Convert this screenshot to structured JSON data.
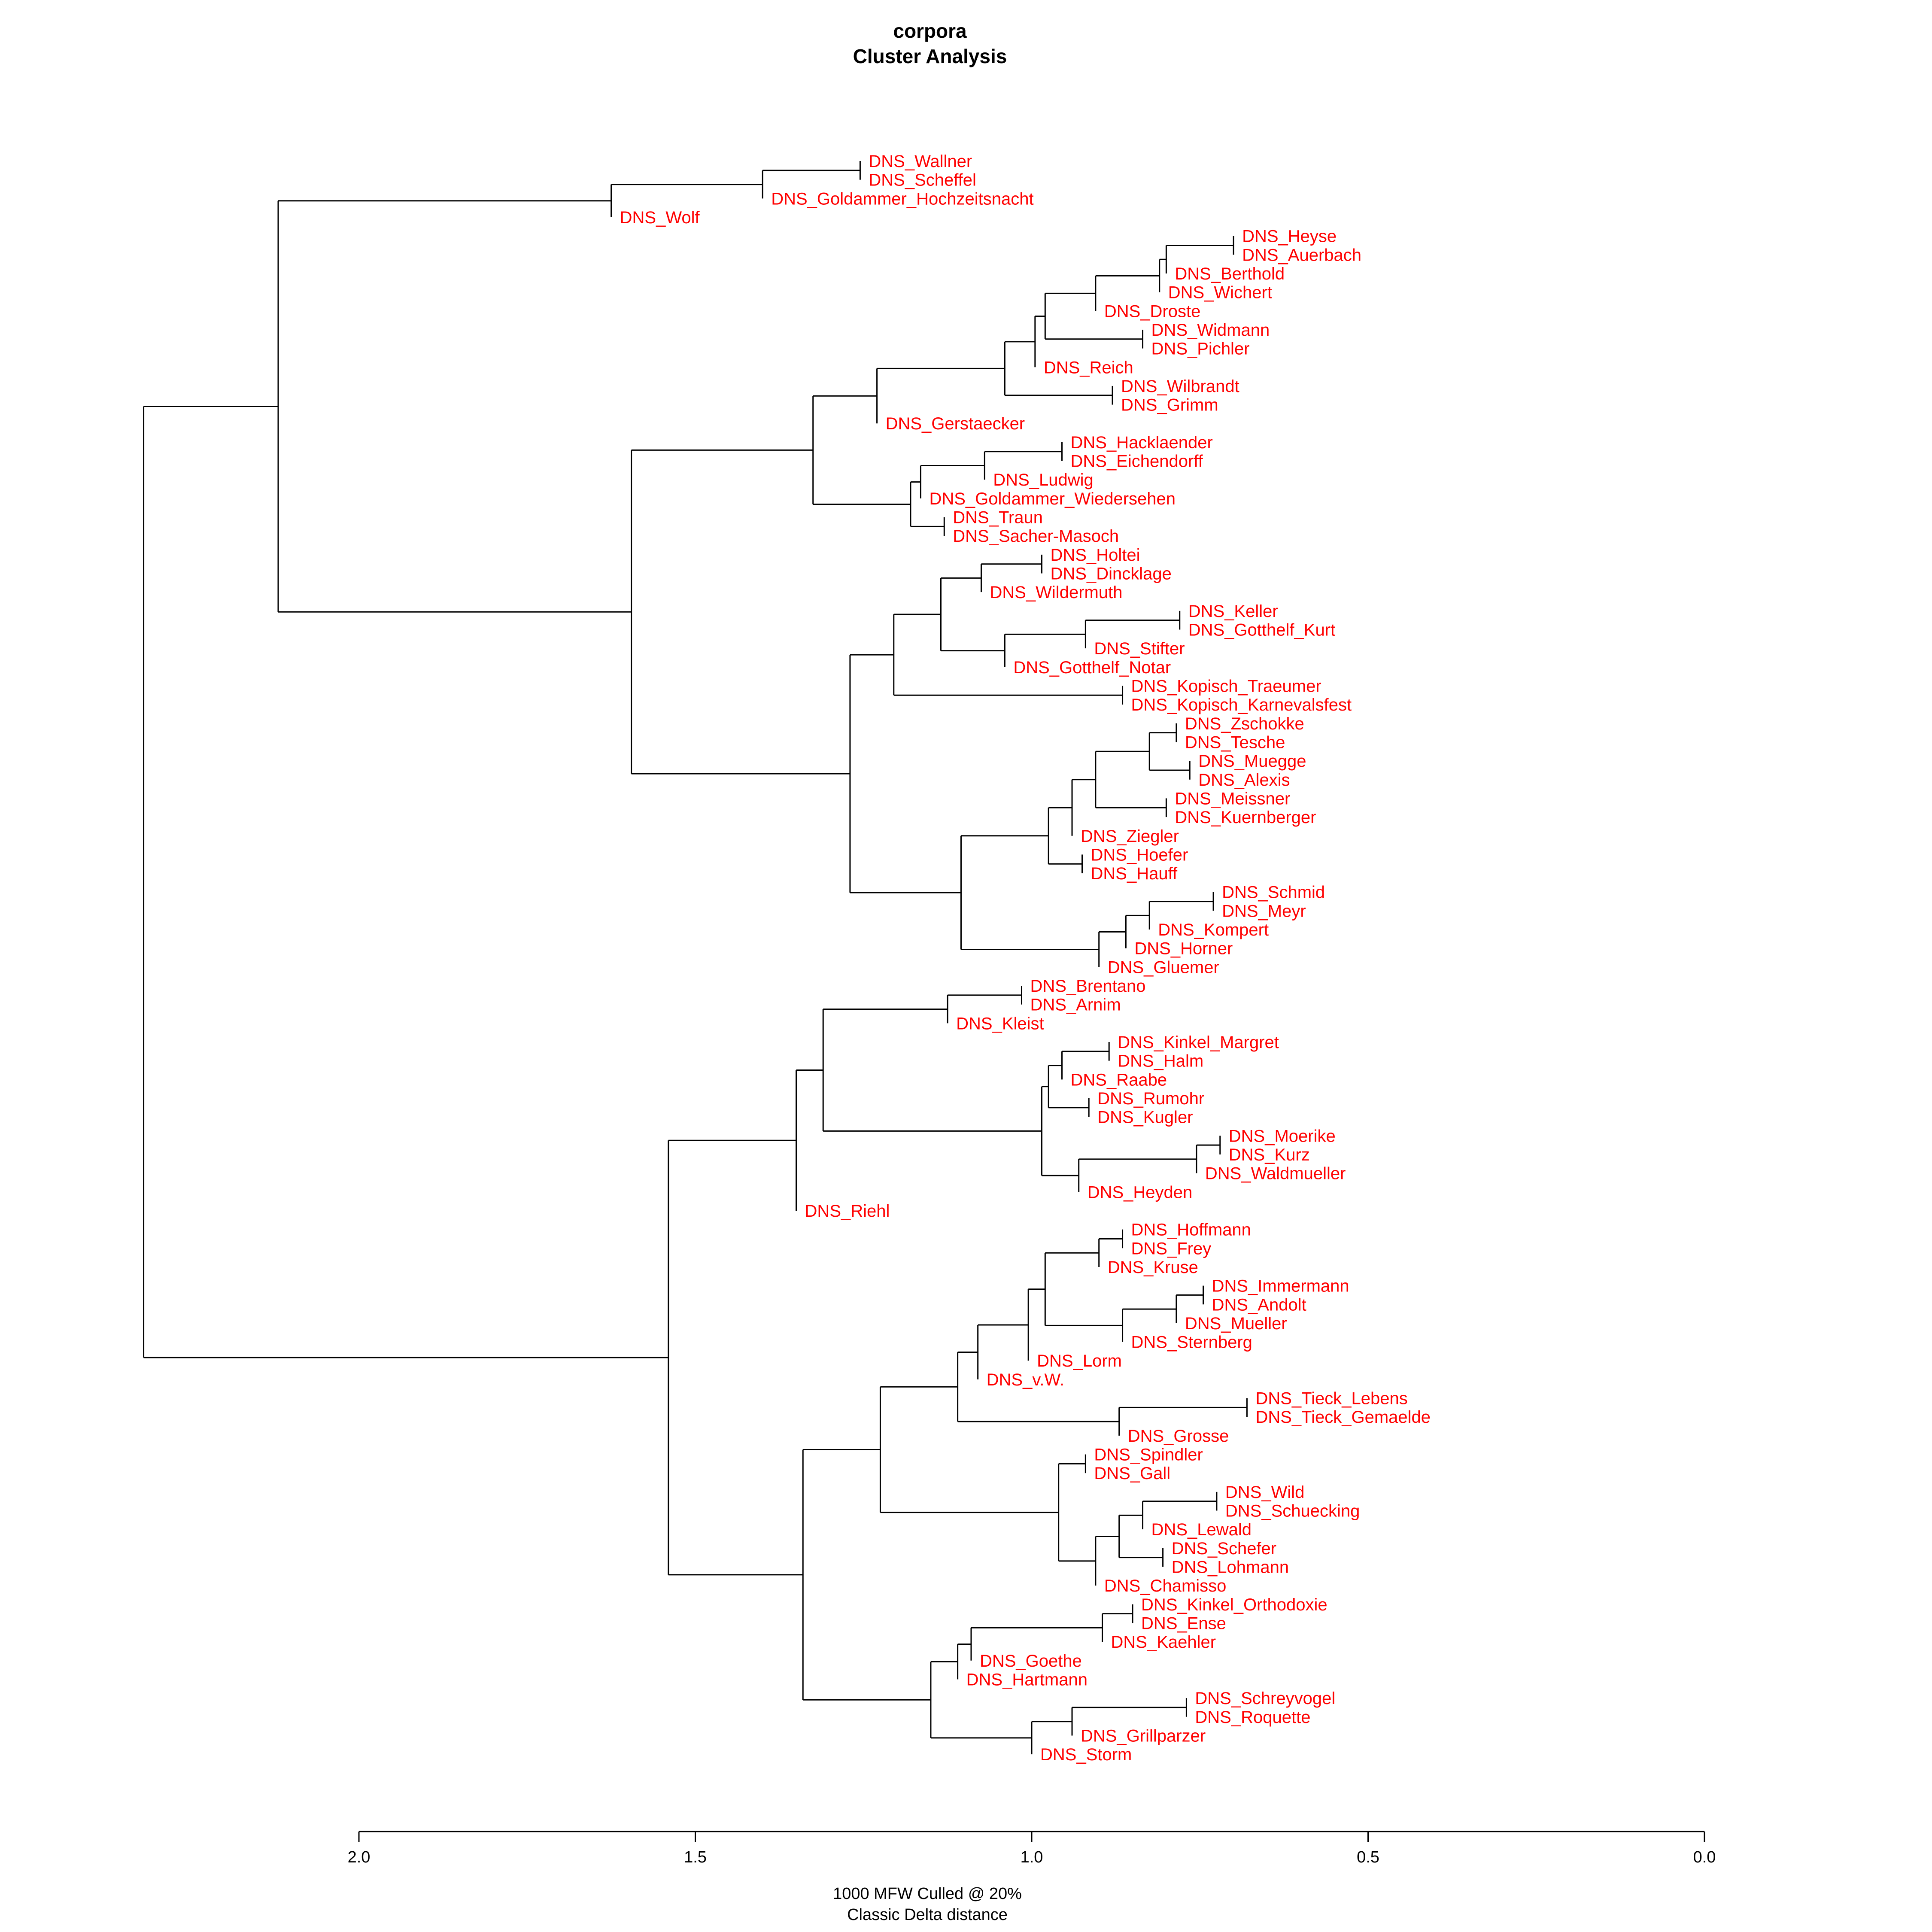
{
  "chart_data": {
    "type": "dendrogram",
    "title": "corpora",
    "subtitle": "Cluster Analysis",
    "xlabel_line1": "1000 MFW  Culled @ 20%",
    "xlabel_line2": "Classic Delta distance",
    "xlim": [
      2.0,
      0.0
    ],
    "ticks": [
      {
        "value": 2.0,
        "label": "2.0"
      },
      {
        "value": 1.5,
        "label": "1.5"
      },
      {
        "value": 1.0,
        "label": "1.0"
      },
      {
        "value": 0.5,
        "label": "0.5"
      },
      {
        "value": 0.0,
        "label": "0.0"
      }
    ],
    "leaves": [
      "DNS_Wallner",
      "DNS_Scheffel",
      "DNS_Goldammer_Hochzeitsnacht",
      "DNS_Wolf",
      "DNS_Heyse",
      "DNS_Auerbach",
      "DNS_Berthold",
      "DNS_Wichert",
      "DNS_Droste",
      "DNS_Widmann",
      "DNS_Pichler",
      "DNS_Reich",
      "DNS_Wilbrandt",
      "DNS_Grimm",
      "DNS_Gerstaecker",
      "DNS_Hacklaender",
      "DNS_Eichendorff",
      "DNS_Ludwig",
      "DNS_Goldammer_Wiedersehen",
      "DNS_Traun",
      "DNS_Sacher-Masoch",
      "DNS_Holtei",
      "DNS_Dincklage",
      "DNS_Wildermuth",
      "DNS_Keller",
      "DNS_Gotthelf_Kurt",
      "DNS_Stifter",
      "DNS_Gotthelf_Notar",
      "DNS_Kopisch_Traeumer",
      "DNS_Kopisch_Karnevalsfest",
      "DNS_Zschokke",
      "DNS_Tesche",
      "DNS_Muegge",
      "DNS_Alexis",
      "DNS_Meissner",
      "DNS_Kuernberger",
      "DNS_Ziegler",
      "DNS_Hoefer",
      "DNS_Hauff",
      "DNS_Schmid",
      "DNS_Meyr",
      "DNS_Kompert",
      "DNS_Horner",
      "DNS_Gluemer",
      "DNS_Brentano",
      "DNS_Arnim",
      "DNS_Kleist",
      "DNS_Kinkel_Margret",
      "DNS_Halm",
      "DNS_Raabe",
      "DNS_Rumohr",
      "DNS_Kugler",
      "DNS_Moerike",
      "DNS_Kurz",
      "DNS_Waldmueller",
      "DNS_Heyden",
      "DNS_Riehl",
      "DNS_Hoffmann",
      "DNS_Frey",
      "DNS_Kruse",
      "DNS_Immermann",
      "DNS_Andolt",
      "DNS_Mueller",
      "DNS_Sternberg",
      "DNS_Lorm",
      "DNS_v.W.",
      "DNS_Tieck_Lebens",
      "DNS_Tieck_Gemaelde",
      "DNS_Grosse",
      "DNS_Spindler",
      "DNS_Gall",
      "DNS_Wild",
      "DNS_Schuecking",
      "DNS_Lewald",
      "DNS_Schefer",
      "DNS_Lohmann",
      "DNS_Chamisso",
      "DNS_Kinkel_Orthodoxie",
      "DNS_Ense",
      "DNS_Kaehler",
      "DNS_Goethe",
      "DNS_Hartmann",
      "DNS_Schreyvogel",
      "DNS_Roquette",
      "DNS_Grillparzer",
      "DNS_Storm"
    ],
    "merges": [
      {
        "a": "DNS_Wallner",
        "b": "DNS_Scheffel",
        "h": 1.255
      },
      {
        "a": 0,
        "b": "DNS_Goldammer_Hochzeitsnacht",
        "h": 1.4
      },
      {
        "a": 1,
        "b": "DNS_Wolf",
        "h": 1.625
      },
      {
        "a": "DNS_Heyse",
        "b": "DNS_Auerbach",
        "h": 0.7
      },
      {
        "a": 3,
        "b": "DNS_Berthold",
        "h": 0.8
      },
      {
        "a": 4,
        "b": "DNS_Wichert",
        "h": 0.81
      },
      {
        "a": 5,
        "b": "DNS_Droste",
        "h": 0.905
      },
      {
        "a": "DNS_Widmann",
        "b": "DNS_Pichler",
        "h": 0.835
      },
      {
        "a": 6,
        "b": 7,
        "h": 0.98
      },
      {
        "a": 8,
        "b": "DNS_Reich",
        "h": 0.995
      },
      {
        "a": "DNS_Wilbrandt",
        "b": "DNS_Grimm",
        "h": 0.88
      },
      {
        "a": 9,
        "b": 10,
        "h": 1.04
      },
      {
        "a": 11,
        "b": "DNS_Gerstaecker",
        "h": 1.23
      },
      {
        "a": "DNS_Hacklaender",
        "b": "DNS_Eichendorff",
        "h": 0.955
      },
      {
        "a": 13,
        "b": "DNS_Ludwig",
        "h": 1.07
      },
      {
        "a": 14,
        "b": "DNS_Goldammer_Wiedersehen",
        "h": 1.165
      },
      {
        "a": "DNS_Traun",
        "b": "DNS_Sacher-Masoch",
        "h": 1.13
      },
      {
        "a": 15,
        "b": 16,
        "h": 1.18
      },
      {
        "a": 12,
        "b": 17,
        "h": 1.325
      },
      {
        "a": "DNS_Holtei",
        "b": "DNS_Dincklage",
        "h": 0.985
      },
      {
        "a": 19,
        "b": "DNS_Wildermuth",
        "h": 1.075
      },
      {
        "a": "DNS_Keller",
        "b": "DNS_Gotthelf_Kurt",
        "h": 0.78
      },
      {
        "a": 21,
        "b": "DNS_Stifter",
        "h": 0.92
      },
      {
        "a": 22,
        "b": "DNS_Gotthelf_Notar",
        "h": 1.04
      },
      {
        "a": 20,
        "b": 23,
        "h": 1.135
      },
      {
        "a": "DNS_Kopisch_Traeumer",
        "b": "DNS_Kopisch_Karnevalsfest",
        "h": 0.865
      },
      {
        "a": 24,
        "b": 25,
        "h": 1.205
      },
      {
        "a": "DNS_Zschokke",
        "b": "DNS_Tesche",
        "h": 0.785
      },
      {
        "a": "DNS_Muegge",
        "b": "DNS_Alexis",
        "h": 0.765
      },
      {
        "a": 27,
        "b": 28,
        "h": 0.825
      },
      {
        "a": "DNS_Meissner",
        "b": "DNS_Kuernberger",
        "h": 0.8
      },
      {
        "a": 29,
        "b": 30,
        "h": 0.905
      },
      {
        "a": 31,
        "b": "DNS_Ziegler",
        "h": 0.94
      },
      {
        "a": "DNS_Hoefer",
        "b": "DNS_Hauff",
        "h": 0.925
      },
      {
        "a": 32,
        "b": 33,
        "h": 0.975
      },
      {
        "a": "DNS_Schmid",
        "b": "DNS_Meyr",
        "h": 0.73
      },
      {
        "a": 35,
        "b": "DNS_Kompert",
        "h": 0.825
      },
      {
        "a": 36,
        "b": "DNS_Horner",
        "h": 0.86
      },
      {
        "a": 37,
        "b": "DNS_Gluemer",
        "h": 0.9
      },
      {
        "a": 34,
        "b": 38,
        "h": 1.105
      },
      {
        "a": 26,
        "b": 39,
        "h": 1.27
      },
      {
        "a": 18,
        "b": 40,
        "h": 1.595
      },
      {
        "a": 2,
        "b": 41,
        "h": 2.12
      },
      {
        "a": "DNS_Brentano",
        "b": "DNS_Arnim",
        "h": 1.015
      },
      {
        "a": 43,
        "b": "DNS_Kleist",
        "h": 1.125
      },
      {
        "a": "DNS_Kinkel_Margret",
        "b": "DNS_Halm",
        "h": 0.885
      },
      {
        "a": 45,
        "b": "DNS_Raabe",
        "h": 0.955
      },
      {
        "a": "DNS_Rumohr",
        "b": "DNS_Kugler",
        "h": 0.915
      },
      {
        "a": 46,
        "b": 47,
        "h": 0.975
      },
      {
        "a": "DNS_Moerike",
        "b": "DNS_Kurz",
        "h": 0.72
      },
      {
        "a": 49,
        "b": "DNS_Waldmueller",
        "h": 0.755
      },
      {
        "a": 50,
        "b": "DNS_Heyden",
        "h": 0.93
      },
      {
        "a": 48,
        "b": 51,
        "h": 0.985
      },
      {
        "a": 44,
        "b": 52,
        "h": 1.31
      },
      {
        "a": 53,
        "b": "DNS_Riehl",
        "h": 1.35
      },
      {
        "a": "DNS_Hoffmann",
        "b": "DNS_Frey",
        "h": 0.865
      },
      {
        "a": 55,
        "b": "DNS_Kruse",
        "h": 0.9
      },
      {
        "a": "DNS_Immermann",
        "b": "DNS_Andolt",
        "h": 0.745
      },
      {
        "a": 57,
        "b": "DNS_Mueller",
        "h": 0.785
      },
      {
        "a": 58,
        "b": "DNS_Sternberg",
        "h": 0.865
      },
      {
        "a": 56,
        "b": 59,
        "h": 0.98
      },
      {
        "a": 60,
        "b": "DNS_Lorm",
        "h": 1.005
      },
      {
        "a": 61,
        "b": "DNS_v.W.",
        "h": 1.08
      },
      {
        "a": "DNS_Tieck_Lebens",
        "b": "DNS_Tieck_Gemaelde",
        "h": 0.68
      },
      {
        "a": 63,
        "b": "DNS_Grosse",
        "h": 0.87
      },
      {
        "a": 62,
        "b": 64,
        "h": 1.11
      },
      {
        "a": "DNS_Spindler",
        "b": "DNS_Gall",
        "h": 0.92
      },
      {
        "a": "DNS_Wild",
        "b": "DNS_Schuecking",
        "h": 0.725
      },
      {
        "a": 67,
        "b": "DNS_Lewald",
        "h": 0.835
      },
      {
        "a": "DNS_Schefer",
        "b": "DNS_Lohmann",
        "h": 0.805
      },
      {
        "a": 68,
        "b": 69,
        "h": 0.87
      },
      {
        "a": 70,
        "b": "DNS_Chamisso",
        "h": 0.905
      },
      {
        "a": 66,
        "b": 71,
        "h": 0.96
      },
      {
        "a": 65,
        "b": 72,
        "h": 1.225
      },
      {
        "a": "DNS_Kinkel_Orthodoxie",
        "b": "DNS_Ense",
        "h": 0.85
      },
      {
        "a": 74,
        "b": "DNS_Kaehler",
        "h": 0.895
      },
      {
        "a": 75,
        "b": "DNS_Goethe",
        "h": 1.09
      },
      {
        "a": 76,
        "b": "DNS_Hartmann",
        "h": 1.11
      },
      {
        "a": "DNS_Schreyvogel",
        "b": "DNS_Roquette",
        "h": 0.77
      },
      {
        "a": 78,
        "b": "DNS_Grillparzer",
        "h": 0.94
      },
      {
        "a": 79,
        "b": "DNS_Storm",
        "h": 1.0
      },
      {
        "a": 77,
        "b": 80,
        "h": 1.15
      },
      {
        "a": 73,
        "b": 81,
        "h": 1.34
      },
      {
        "a": 54,
        "b": 82,
        "h": 1.54
      },
      {
        "a": 42,
        "b": 83,
        "h": 2.32
      }
    ]
  }
}
